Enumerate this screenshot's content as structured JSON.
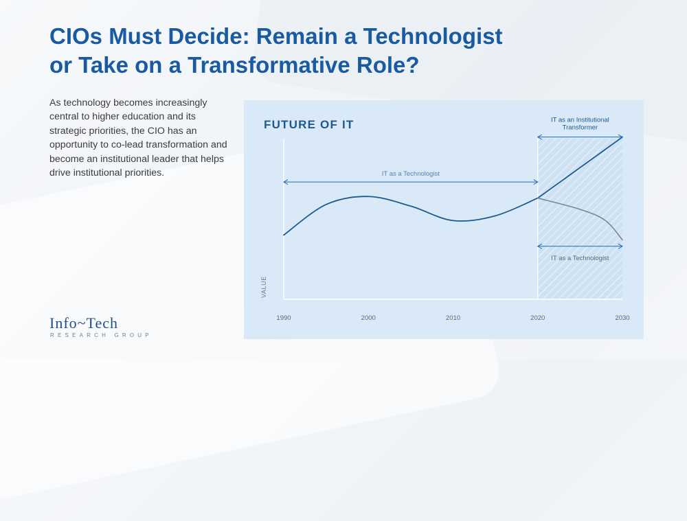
{
  "title_lines": [
    "CIOs Must Decide: Remain a Technologist",
    "or Take on a Transformative Role?"
  ],
  "body": "As technology becomes increasingly central to higher education and its strategic priorities, the CIO has an opportunity to co-lead transformation and become an institutional leader that helps drive institutional priorities.",
  "logo": {
    "name": "Info~Tech",
    "subtitle": "RESEARCH GROUP"
  },
  "colors": {
    "title": "#1a5aa1",
    "panel": "#d9e9f7",
    "line": "#1c5a8e",
    "decline_line": "#7a8793",
    "accent": "#1f6bb5"
  },
  "chart_data": {
    "type": "line",
    "title": "FUTURE OF IT",
    "ylabel": "VALUE",
    "xlabel": "",
    "x_ticks": [
      1990,
      2000,
      2010,
      2020,
      2030
    ],
    "xlim": [
      1990,
      2030
    ],
    "ylim": [
      0,
      100
    ],
    "grid": false,
    "series": [
      {
        "role": "history",
        "x": [
          1990,
          1995,
          2000,
          2005,
          2010,
          2015,
          2020
        ],
        "y": [
          40,
          59,
          64,
          58,
          49,
          52,
          63
        ]
      },
      {
        "role": "transformer",
        "x": [
          2020,
          2025,
          2030
        ],
        "y": [
          63,
          82,
          101
        ]
      },
      {
        "role": "technologist",
        "x": [
          2020,
          2025,
          2028,
          2030
        ],
        "y": [
          63,
          56,
          49,
          37
        ]
      }
    ],
    "shaded_region": {
      "x": [
        2020,
        2030
      ]
    },
    "annotations": [
      {
        "text": "IT as a Technologist",
        "x_range": [
          1990,
          2020
        ],
        "y": 73
      },
      {
        "text": "IT as an Institutional Transformer",
        "x_range": [
          2020,
          2030
        ],
        "y": 101
      },
      {
        "text": "IT as a Technologist",
        "x_range": [
          2020,
          2030
        ],
        "y": 33
      }
    ]
  }
}
